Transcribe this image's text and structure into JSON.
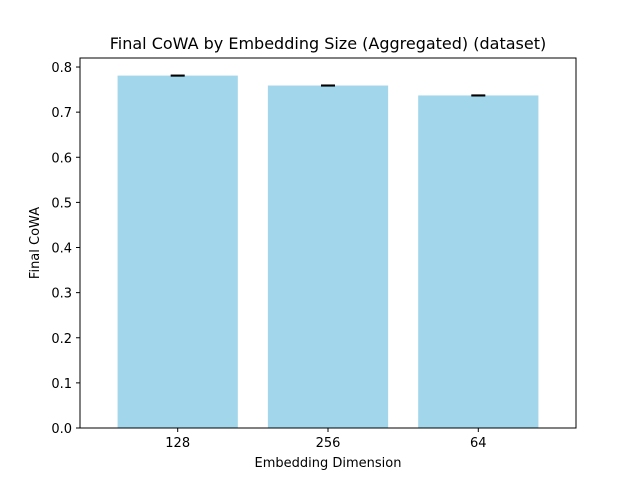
{
  "chart_data": {
    "type": "bar",
    "title": "Final CoWA by Embedding Size (Aggregated) (dataset)",
    "xlabel": "Embedding Dimension",
    "ylabel": "Final CoWA",
    "categories": [
      "128",
      "256",
      "64"
    ],
    "values": [
      0.781,
      0.759,
      0.737
    ],
    "errors": [
      0.001,
      0.001,
      0.001
    ],
    "ylim": [
      0,
      0.82
    ],
    "yticks": [
      "0.0",
      "0.1",
      "0.2",
      "0.3",
      "0.4",
      "0.5",
      "0.6",
      "0.7",
      "0.8"
    ],
    "bar_color": "#a2d6eb",
    "error_color": "#000000",
    "grid": false,
    "legend": "none"
  }
}
